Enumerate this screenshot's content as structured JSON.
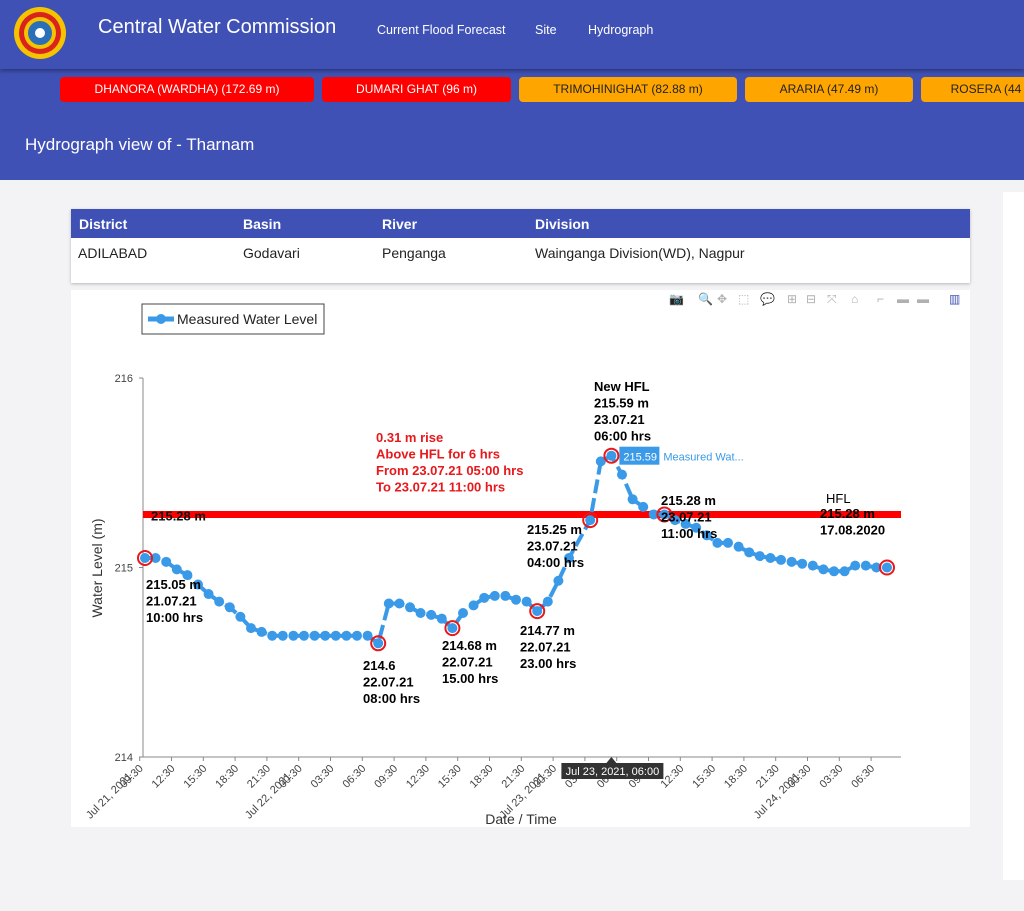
{
  "header": {
    "brand": "Central Water Commission",
    "nav": [
      "Current Flood Forecast",
      "Site",
      "Hydrograph"
    ]
  },
  "ticker": [
    {
      "label": "DHANORA (WARDHA) (172.69 m)",
      "status": "red"
    },
    {
      "label": "DUMARI GHAT (96 m)",
      "status": "red"
    },
    {
      "label": "TRIMOHINIGHAT (82.88 m)",
      "status": "orange"
    },
    {
      "label": "ARARIA (47.49 m)",
      "status": "orange"
    },
    {
      "label": "ROSERA (44",
      "status": "orange"
    }
  ],
  "page_title": "Hydrograph view of - Tharnam",
  "site_table": {
    "headers": [
      "District",
      "Basin",
      "River",
      "Division"
    ],
    "row": [
      "ADILABAD",
      "Godavari",
      "Penganga",
      "Wainganga Division(WD), Nagpur"
    ]
  },
  "modebar_icons": [
    "camera-icon",
    "zoom-icon",
    "pan-icon",
    "box-select-icon",
    "lasso-icon",
    "zoom-in-icon",
    "zoom-out-icon",
    "autoscale-icon",
    "reset-axes-icon",
    "spike-lines-icon",
    "hover-closest-icon",
    "hover-compare-icon",
    "plotly-logo-icon"
  ],
  "colors": {
    "primary": "#3f51b5",
    "alert_red": "#ff0000",
    "warning_orange": "#ffa500",
    "series": "#3a9ae8"
  },
  "chart_data": {
    "type": "line",
    "title": "",
    "xlabel": "Date / Time",
    "ylabel": "Water Level (m)",
    "ylim": [
      214,
      216
    ],
    "y_ticks": [
      "214",
      "215",
      "216"
    ],
    "x_ticks": [
      "09:30\nJul 21, 2021",
      "12:30",
      "15:30",
      "18:30",
      "21:30",
      "00:30\nJul 22, 2021",
      "03:30",
      "06:30",
      "09:30",
      "12:30",
      "15:30",
      "18:30",
      "21:30",
      "00:30\nJul 23, 2021",
      "03:30",
      "06:30",
      "09:30",
      "12:30",
      "15:30",
      "18:30",
      "21:30",
      "00:30\nJul 24, 2021",
      "03:30",
      "06:30"
    ],
    "series": [
      {
        "name": "Measured Water Level",
        "x": [
          "2021-07-21 10:00",
          "2021-07-21 11:00",
          "2021-07-21 12:00",
          "2021-07-21 13:00",
          "2021-07-21 14:00",
          "2021-07-21 15:00",
          "2021-07-21 16:00",
          "2021-07-21 17:00",
          "2021-07-21 18:00",
          "2021-07-21 19:00",
          "2021-07-21 20:00",
          "2021-07-21 21:00",
          "2021-07-21 22:00",
          "2021-07-21 23:00",
          "2021-07-22 00:00",
          "2021-07-22 01:00",
          "2021-07-22 02:00",
          "2021-07-22 03:00",
          "2021-07-22 04:00",
          "2021-07-22 05:00",
          "2021-07-22 06:00",
          "2021-07-22 07:00",
          "2021-07-22 08:00",
          "2021-07-22 09:00",
          "2021-07-22 10:00",
          "2021-07-22 11:00",
          "2021-07-22 12:00",
          "2021-07-22 13:00",
          "2021-07-22 14:00",
          "2021-07-22 15:00",
          "2021-07-22 16:00",
          "2021-07-22 17:00",
          "2021-07-22 18:00",
          "2021-07-22 19:00",
          "2021-07-22 20:00",
          "2021-07-22 21:00",
          "2021-07-22 22:00",
          "2021-07-22 23:00",
          "2021-07-23 00:00",
          "2021-07-23 01:00",
          "2021-07-23 02:00",
          "2021-07-23 04:00",
          "2021-07-23 05:00",
          "2021-07-23 06:00",
          "2021-07-23 07:00",
          "2021-07-23 08:00",
          "2021-07-23 09:00",
          "2021-07-23 10:00",
          "2021-07-23 11:00",
          "2021-07-23 12:00",
          "2021-07-23 13:00",
          "2021-07-23 14:00",
          "2021-07-23 15:00",
          "2021-07-23 16:00",
          "2021-07-23 17:00",
          "2021-07-23 18:00",
          "2021-07-23 19:00",
          "2021-07-23 20:00",
          "2021-07-23 21:00",
          "2021-07-23 22:00",
          "2021-07-23 23:00",
          "2021-07-24 00:00",
          "2021-07-24 01:00",
          "2021-07-24 02:00",
          "2021-07-24 03:00",
          "2021-07-24 04:00",
          "2021-07-24 05:00",
          "2021-07-24 06:00",
          "2021-07-24 07:00",
          "2021-07-24 08:00"
        ],
        "y": [
          215.05,
          215.05,
          215.03,
          214.99,
          214.96,
          214.91,
          214.86,
          214.82,
          214.79,
          214.74,
          214.68,
          214.66,
          214.64,
          214.64,
          214.64,
          214.64,
          214.64,
          214.64,
          214.64,
          214.64,
          214.64,
          214.64,
          214.6,
          214.81,
          214.81,
          214.79,
          214.76,
          214.75,
          214.73,
          214.68,
          214.76,
          214.8,
          214.84,
          214.85,
          214.85,
          214.83,
          214.82,
          214.77,
          214.82,
          214.93,
          215.05,
          215.25,
          215.56,
          215.59,
          215.49,
          215.36,
          215.32,
          215.28,
          215.28,
          215.25,
          215.23,
          215.21,
          215.17,
          215.13,
          215.13,
          215.11,
          215.08,
          215.06,
          215.05,
          215.04,
          215.03,
          215.02,
          215.01,
          214.99,
          214.98,
          214.98,
          215.01,
          215.01,
          215.0,
          215.0
        ]
      }
    ],
    "hfl_line": {
      "value": 215.28,
      "label": "215.28 m"
    },
    "annotations": [
      {
        "text": "215.05 m\n21.07.21\n10:00 hrs",
        "color": "#000000"
      },
      {
        "text": "214.6\n22.07.21\n08:00 hrs",
        "color": "#000000"
      },
      {
        "text": "214.68 m\n22.07.21\n15.00 hrs",
        "color": "#000000"
      },
      {
        "text": "214.77 m\n22.07.21\n23.00 hrs",
        "color": "#000000"
      },
      {
        "text": "215.25 m\n23.07.21\n04:00 hrs",
        "color": "#000000"
      },
      {
        "text": "New HFL\n215.59 m\n23.07.21\n06:00 hrs",
        "color": "#000000"
      },
      {
        "text": "215.28 m\n23.07.21\n11:00 hrs",
        "color": "#000000"
      },
      {
        "text": "0.31 m rise\nAbove HFL for 6 hrs\nFrom 23.07.21 05:00 hrs\nTo      23.07.21 11:00 hrs",
        "color": "#e8181b"
      },
      {
        "text": "HFL",
        "color": "#000000"
      },
      {
        "text": "215.28 m\n17.08.2020",
        "color": "#000000"
      }
    ],
    "hover": {
      "x_label": "Jul 23, 2021, 06:00",
      "value_label": "215.59",
      "series_label": "Measured Wat..."
    },
    "grid": false,
    "legend_position": "top-left"
  }
}
